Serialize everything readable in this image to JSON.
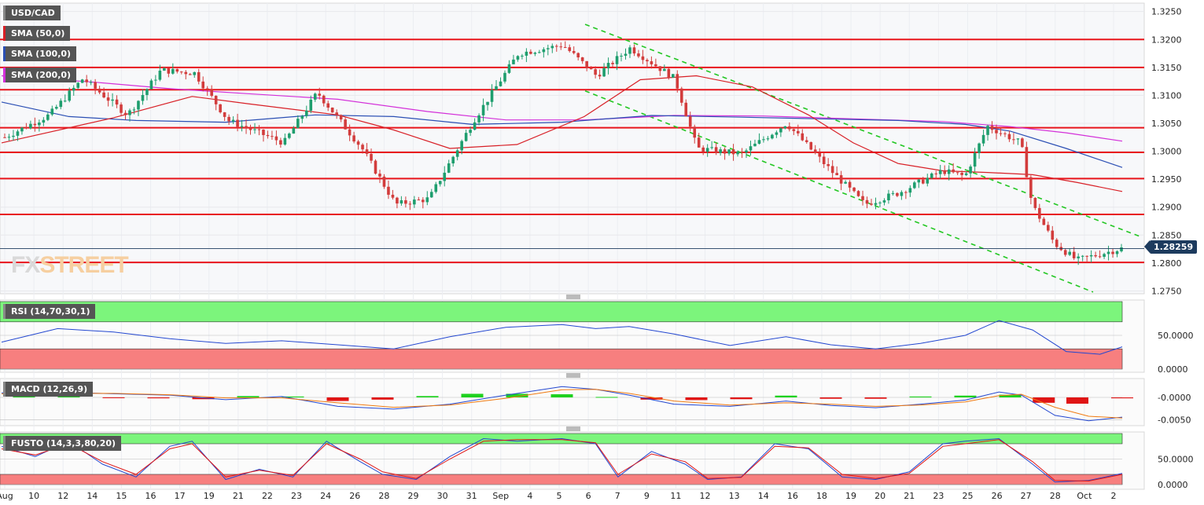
{
  "symbol": "USD/CAD",
  "overlays": [
    {
      "label": "SMA (50,0)",
      "color": "#d81f26"
    },
    {
      "label": "SMA (100,0)",
      "color": "#2b4fb4"
    },
    {
      "label": "SMA (200,0)",
      "color": "#d32fd9"
    }
  ],
  "watermark": {
    "part1": "FX",
    "part2": "STREET"
  },
  "current_price": "1.28259",
  "chart_data": [
    {
      "type": "candlestick",
      "title": "USD/CAD",
      "x_labels": [
        "Aug",
        "10",
        "12",
        "14",
        "15",
        "16",
        "17",
        "19",
        "21",
        "22",
        "23",
        "24",
        "26",
        "28",
        "29",
        "30",
        "31",
        "Sep",
        "4",
        "5",
        "6",
        "7",
        "9",
        "11",
        "12",
        "13",
        "14",
        "16",
        "18",
        "19",
        "20",
        "21",
        "23",
        "25",
        "26",
        "27",
        "28",
        "Oct",
        "2"
      ],
      "y_ticks": [
        "1.3250",
        "1.3200",
        "1.3150",
        "1.3100",
        "1.3050",
        "1.3000",
        "1.2950",
        "1.2900",
        "1.2850",
        "1.2800",
        "1.2750"
      ],
      "ylim": [
        1.2745,
        1.3265
      ],
      "horizontal_levels": [
        1.32,
        1.315,
        1.311,
        1.3042,
        1.2998,
        1.2951,
        1.2887,
        1.2801
      ],
      "channel_upper": [
        [
          0.0,
          1.3227
        ],
        [
          1.0,
          1.2845
        ]
      ],
      "channel_lower": [
        [
          0.0,
          1.3108
        ],
        [
          1.0,
          1.2748
        ]
      ],
      "close_path": [
        [
          0.0,
          1.3025
        ],
        [
          0.04,
          1.3065
        ],
        [
          0.07,
          1.313
        ],
        [
          0.11,
          1.3065
        ],
        [
          0.14,
          1.3145
        ],
        [
          0.17,
          1.314
        ],
        [
          0.2,
          1.3055
        ],
        [
          0.25,
          1.3015
        ],
        [
          0.28,
          1.3105
        ],
        [
          0.32,
          1.3005
        ],
        [
          0.35,
          1.2905
        ],
        [
          0.38,
          1.2915
        ],
        [
          0.42,
          1.3055
        ],
        [
          0.46,
          1.3175
        ],
        [
          0.5,
          1.319
        ],
        [
          0.53,
          1.3135
        ],
        [
          0.56,
          1.3185
        ],
        [
          0.6,
          1.313
        ],
        [
          0.62,
          1.3005
        ],
        [
          0.66,
          1.2995
        ],
        [
          0.7,
          1.305
        ],
        [
          0.74,
          1.2965
        ],
        [
          0.77,
          1.2905
        ],
        [
          0.8,
          1.2925
        ],
        [
          0.84,
          1.2965
        ],
        [
          0.86,
          1.2955
        ],
        [
          0.88,
          1.3045
        ],
        [
          0.91,
          1.3015
        ],
        [
          0.92,
          1.2905
        ],
        [
          0.94,
          1.2835
        ],
        [
          0.96,
          1.2805
        ],
        [
          1.0,
          1.2826
        ]
      ],
      "sma50": [
        [
          0.0,
          1.3015
        ],
        [
          0.1,
          1.306
        ],
        [
          0.17,
          1.3098
        ],
        [
          0.22,
          1.3085
        ],
        [
          0.3,
          1.3065
        ],
        [
          0.35,
          1.3038
        ],
        [
          0.4,
          1.3005
        ],
        [
          0.46,
          1.3012
        ],
        [
          0.52,
          1.3062
        ],
        [
          0.57,
          1.3128
        ],
        [
          0.62,
          1.3135
        ],
        [
          0.67,
          1.3115
        ],
        [
          0.72,
          1.3065
        ],
        [
          0.76,
          1.3015
        ],
        [
          0.8,
          1.2978
        ],
        [
          0.84,
          1.2965
        ],
        [
          0.88,
          1.2962
        ],
        [
          0.92,
          1.2958
        ],
        [
          0.96,
          1.2944
        ],
        [
          1.0,
          1.2928
        ]
      ],
      "sma100": [
        [
          0.0,
          1.3088
        ],
        [
          0.06,
          1.3062
        ],
        [
          0.12,
          1.3055
        ],
        [
          0.2,
          1.3052
        ],
        [
          0.28,
          1.3065
        ],
        [
          0.35,
          1.3062
        ],
        [
          0.42,
          1.3048
        ],
        [
          0.5,
          1.3052
        ],
        [
          0.58,
          1.3064
        ],
        [
          0.66,
          1.3061
        ],
        [
          0.73,
          1.3058
        ],
        [
          0.8,
          1.3055
        ],
        [
          0.86,
          1.3048
        ],
        [
          0.9,
          1.3036
        ],
        [
          0.95,
          1.3005
        ],
        [
          1.0,
          1.2971
        ]
      ],
      "sma200": [
        [
          0.0,
          1.3135
        ],
        [
          0.08,
          1.3124
        ],
        [
          0.15,
          1.3112
        ],
        [
          0.22,
          1.3103
        ],
        [
          0.3,
          1.3093
        ],
        [
          0.38,
          1.3071
        ],
        [
          0.45,
          1.3056
        ],
        [
          0.52,
          1.3056
        ],
        [
          0.6,
          1.3064
        ],
        [
          0.68,
          1.3063
        ],
        [
          0.76,
          1.3058
        ],
        [
          0.84,
          1.3053
        ],
        [
          0.9,
          1.3044
        ],
        [
          0.95,
          1.3033
        ],
        [
          1.0,
          1.3018
        ]
      ]
    },
    {
      "type": "line",
      "title": "RSI (14,70,30,1)",
      "y_ticks": [
        "50.0000",
        "0.0000"
      ],
      "ylim": [
        0,
        100
      ],
      "upper_band": 70,
      "lower_band": 30,
      "series": [
        {
          "values": [
            [
              0.0,
              40
            ],
            [
              0.05,
              60
            ],
            [
              0.1,
              55
            ],
            [
              0.15,
              45
            ],
            [
              0.2,
              38
            ],
            [
              0.25,
              42
            ],
            [
              0.3,
              36
            ],
            [
              0.35,
              30
            ],
            [
              0.4,
              48
            ],
            [
              0.45,
              62
            ],
            [
              0.5,
              66
            ],
            [
              0.53,
              60
            ],
            [
              0.56,
              63
            ],
            [
              0.6,
              52
            ],
            [
              0.65,
              35
            ],
            [
              0.7,
              48
            ],
            [
              0.74,
              36
            ],
            [
              0.78,
              30
            ],
            [
              0.82,
              38
            ],
            [
              0.86,
              50
            ],
            [
              0.89,
              72
            ],
            [
              0.92,
              58
            ],
            [
              0.95,
              26
            ],
            [
              0.98,
              22
            ],
            [
              1.0,
              33
            ]
          ]
        }
      ]
    },
    {
      "type": "line",
      "title": "MACD (12,26,9)",
      "y_ticks": [
        "-0.0000",
        "-0.0050"
      ],
      "ylim": [
        -0.0063,
        0.0042
      ],
      "series": [
        {
          "values": [
            [
              0.0,
              0.001
            ],
            [
              0.05,
              0.0012
            ],
            [
              0.1,
              0.0008
            ],
            [
              0.15,
              0.0005
            ],
            [
              0.2,
              -0.0005
            ],
            [
              0.25,
              0.0002
            ],
            [
              0.3,
              -0.002
            ],
            [
              0.35,
              -0.0026
            ],
            [
              0.4,
              -0.0015
            ],
            [
              0.45,
              0.0005
            ],
            [
              0.5,
              0.0024
            ],
            [
              0.53,
              0.0018
            ],
            [
              0.56,
              0.0005
            ],
            [
              0.6,
              -0.0015
            ],
            [
              0.65,
              -0.002
            ],
            [
              0.7,
              -0.0008
            ],
            [
              0.74,
              -0.0018
            ],
            [
              0.78,
              -0.0023
            ],
            [
              0.82,
              -0.0015
            ],
            [
              0.86,
              -0.0006
            ],
            [
              0.89,
              0.0012
            ],
            [
              0.91,
              0.0005
            ],
            [
              0.94,
              -0.004
            ],
            [
              0.97,
              -0.0052
            ],
            [
              1.0,
              -0.0044
            ]
          ]
        },
        {
          "values": [
            [
              0.0,
              0.0008
            ],
            [
              0.05,
              0.0009
            ],
            [
              0.1,
              0.0009
            ],
            [
              0.15,
              0.0006
            ],
            [
              0.2,
              -0.0001
            ],
            [
              0.25,
              -0.0001
            ],
            [
              0.3,
              -0.0012
            ],
            [
              0.35,
              -0.0022
            ],
            [
              0.4,
              -0.0017
            ],
            [
              0.45,
              -0.0002
            ],
            [
              0.5,
              0.0017
            ],
            [
              0.53,
              0.0018
            ],
            [
              0.56,
              0.0009
            ],
            [
              0.6,
              -0.0008
            ],
            [
              0.65,
              -0.0017
            ],
            [
              0.7,
              -0.0012
            ],
            [
              0.74,
              -0.0015
            ],
            [
              0.78,
              -0.002
            ],
            [
              0.82,
              -0.0017
            ],
            [
              0.86,
              -0.001
            ],
            [
              0.89,
              0.0004
            ],
            [
              0.91,
              0.0007
            ],
            [
              0.94,
              -0.0022
            ],
            [
              0.97,
              -0.0042
            ],
            [
              1.0,
              -0.0046
            ]
          ]
        }
      ],
      "histogram": [
        [
          0.02,
          0.0003
        ],
        [
          0.06,
          0.0003
        ],
        [
          0.1,
          -0.0001
        ],
        [
          0.14,
          -0.0002
        ],
        [
          0.18,
          -0.0004
        ],
        [
          0.22,
          0.0003
        ],
        [
          0.26,
          0.0002
        ],
        [
          0.3,
          -0.0008
        ],
        [
          0.34,
          -0.0005
        ],
        [
          0.38,
          0.0003
        ],
        [
          0.42,
          0.0008
        ],
        [
          0.46,
          0.0008
        ],
        [
          0.5,
          0.0007
        ],
        [
          0.54,
          0.0001
        ],
        [
          0.58,
          -0.0005
        ],
        [
          0.62,
          -0.0006
        ],
        [
          0.66,
          -0.0004
        ],
        [
          0.7,
          0.0004
        ],
        [
          0.74,
          -0.0003
        ],
        [
          0.78,
          -0.0003
        ],
        [
          0.82,
          0.0002
        ],
        [
          0.86,
          0.0004
        ],
        [
          0.9,
          0.0006
        ],
        [
          0.93,
          -0.0012
        ],
        [
          0.96,
          -0.0014
        ],
        [
          1.0,
          -0.0002
        ]
      ]
    },
    {
      "type": "line",
      "title": "FUSTO (14,3,3,80,20)",
      "y_ticks": [
        "50.0000",
        "0.0000"
      ],
      "ylim": [
        0,
        100
      ],
      "upper_band": 80,
      "lower_band": 20,
      "series": [
        {
          "values": [
            [
              0.0,
              75
            ],
            [
              0.03,
              55
            ],
            [
              0.06,
              85
            ],
            [
              0.09,
              40
            ],
            [
              0.12,
              15
            ],
            [
              0.15,
              75
            ],
            [
              0.17,
              85
            ],
            [
              0.2,
              10
            ],
            [
              0.23,
              30
            ],
            [
              0.26,
              15
            ],
            [
              0.29,
              85
            ],
            [
              0.32,
              45
            ],
            [
              0.34,
              20
            ],
            [
              0.37,
              10
            ],
            [
              0.4,
              55
            ],
            [
              0.43,
              90
            ],
            [
              0.46,
              85
            ],
            [
              0.5,
              90
            ],
            [
              0.53,
              80
            ],
            [
              0.55,
              15
            ],
            [
              0.58,
              65
            ],
            [
              0.61,
              40
            ],
            [
              0.63,
              10
            ],
            [
              0.66,
              15
            ],
            [
              0.69,
              80
            ],
            [
              0.72,
              70
            ],
            [
              0.75,
              15
            ],
            [
              0.78,
              10
            ],
            [
              0.81,
              25
            ],
            [
              0.84,
              80
            ],
            [
              0.86,
              85
            ],
            [
              0.89,
              90
            ],
            [
              0.92,
              40
            ],
            [
              0.94,
              5
            ],
            [
              0.97,
              8
            ],
            [
              1.0,
              22
            ]
          ]
        },
        {
          "values": [
            [
              0.0,
              70
            ],
            [
              0.03,
              58
            ],
            [
              0.06,
              80
            ],
            [
              0.09,
              45
            ],
            [
              0.12,
              20
            ],
            [
              0.15,
              70
            ],
            [
              0.17,
              80
            ],
            [
              0.2,
              15
            ],
            [
              0.23,
              28
            ],
            [
              0.26,
              18
            ],
            [
              0.29,
              80
            ],
            [
              0.32,
              50
            ],
            [
              0.34,
              25
            ],
            [
              0.37,
              12
            ],
            [
              0.4,
              50
            ],
            [
              0.43,
              85
            ],
            [
              0.46,
              88
            ],
            [
              0.5,
              88
            ],
            [
              0.53,
              82
            ],
            [
              0.55,
              20
            ],
            [
              0.58,
              60
            ],
            [
              0.61,
              45
            ],
            [
              0.63,
              12
            ],
            [
              0.66,
              14
            ],
            [
              0.69,
              75
            ],
            [
              0.72,
              72
            ],
            [
              0.75,
              20
            ],
            [
              0.78,
              12
            ],
            [
              0.81,
              22
            ],
            [
              0.84,
              75
            ],
            [
              0.86,
              80
            ],
            [
              0.89,
              88
            ],
            [
              0.92,
              45
            ],
            [
              0.94,
              8
            ],
            [
              0.97,
              7
            ],
            [
              1.0,
              20
            ]
          ]
        }
      ]
    }
  ]
}
